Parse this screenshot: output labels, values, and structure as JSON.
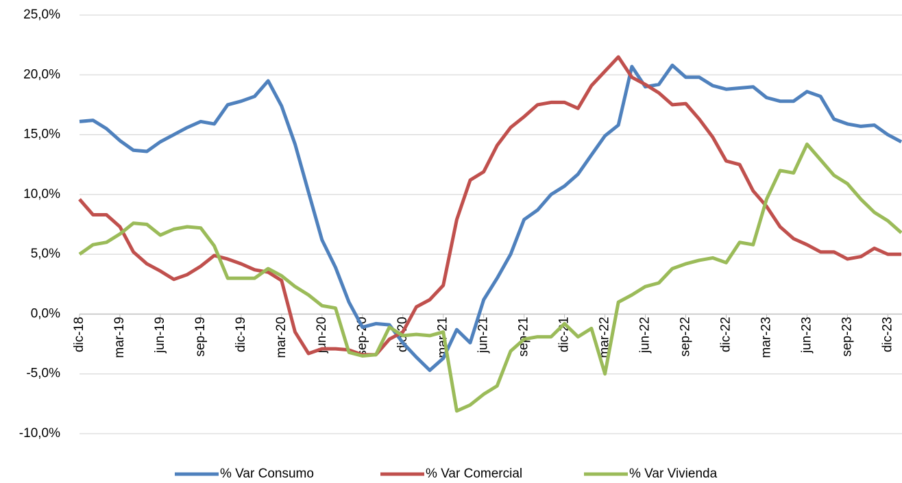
{
  "chart_data": {
    "type": "line",
    "categories": [
      "dic-18",
      null,
      null,
      "mar-19",
      null,
      null,
      "jun-19",
      null,
      null,
      "sep-19",
      null,
      null,
      "dic-19",
      null,
      null,
      "mar-20",
      null,
      null,
      "jun-20",
      null,
      null,
      "sep-20",
      null,
      null,
      "dic-20",
      null,
      null,
      "mar-21",
      null,
      null,
      "jun-21",
      null,
      null,
      "sep-21",
      null,
      null,
      "dic-21",
      null,
      null,
      "mar-22",
      null,
      null,
      "jun-22",
      null,
      null,
      "sep-22",
      null,
      null,
      "dic-22",
      null,
      null,
      "mar-23",
      null,
      null,
      "jun-23",
      null,
      null,
      "sep-23",
      null,
      null,
      "dic-23",
      null
    ],
    "series": [
      {
        "name": "% Var Consumo",
        "color": "#4f81bd",
        "values": [
          16.1,
          16.2,
          15.5,
          14.5,
          13.7,
          13.6,
          14.4,
          15.0,
          15.6,
          16.1,
          15.9,
          17.5,
          17.8,
          18.2,
          19.5,
          17.4,
          14.2,
          10.2,
          6.2,
          3.9,
          1.0,
          -1.1,
          -0.8,
          -0.9,
          -2.4,
          -3.6,
          -4.7,
          -3.7,
          -1.3,
          -2.4,
          1.2,
          3.0,
          5.0,
          7.9,
          8.7,
          10.0,
          10.7,
          11.7,
          13.3,
          14.9,
          15.8,
          20.7,
          19.0,
          19.2,
          20.8,
          19.8,
          19.8,
          19.1,
          18.8,
          18.9,
          19.0,
          18.1,
          17.8,
          17.8,
          18.6,
          18.2,
          16.3,
          15.9,
          15.7,
          15.8,
          15.0,
          14.4
        ]
      },
      {
        "name": "% Var Comercial",
        "color": "#c0504d",
        "values": [
          9.6,
          8.3,
          8.3,
          7.3,
          5.2,
          4.2,
          3.6,
          2.9,
          3.3,
          4.0,
          4.9,
          4.6,
          4.2,
          3.7,
          3.5,
          2.8,
          -1.5,
          -3.3,
          -2.9,
          -2.9,
          -3.0,
          -3.4,
          -3.4,
          -2.1,
          -1.5,
          0.6,
          1.2,
          2.4,
          7.9,
          11.2,
          11.9,
          14.1,
          15.6,
          16.5,
          17.5,
          17.7,
          17.7,
          17.2,
          19.1,
          20.3,
          21.5,
          19.8,
          19.2,
          18.5,
          17.5,
          17.6,
          16.3,
          14.8,
          12.8,
          12.5,
          10.3,
          9.0,
          7.3,
          6.3,
          5.8,
          5.2,
          5.2,
          4.6,
          4.8,
          5.5,
          5.0,
          5.0
        ]
      },
      {
        "name": "% Var Vivienda",
        "color": "#9bbb59",
        "values": [
          5.0,
          5.8,
          6.0,
          6.7,
          7.6,
          7.5,
          6.6,
          7.1,
          7.3,
          7.2,
          5.7,
          3.0,
          3.0,
          3.0,
          3.8,
          3.2,
          2.3,
          1.6,
          0.7,
          0.5,
          -3.2,
          -3.5,
          -3.4,
          -1.1,
          -1.8,
          -1.7,
          -1.8,
          -1.5,
          -8.1,
          -7.6,
          -6.7,
          -6.0,
          -3.1,
          -2.1,
          -1.9,
          -1.9,
          -0.8,
          -1.9,
          -1.2,
          -5.0,
          1.0,
          1.6,
          2.3,
          2.6,
          3.8,
          4.2,
          4.5,
          4.7,
          4.3,
          6.0,
          5.8,
          9.6,
          12.0,
          11.8,
          14.2,
          12.9,
          11.6,
          10.9,
          9.6,
          8.5,
          7.8,
          6.8
        ]
      }
    ],
    "ylim": [
      -10,
      25
    ],
    "yticks": [
      {
        "value": -10,
        "label": "-10,0%"
      },
      {
        "value": -5,
        "label": "-5,0%"
      },
      {
        "value": 0,
        "label": "0,0%"
      },
      {
        "value": 5,
        "label": "5,0%"
      },
      {
        "value": 10,
        "label": "10,0%"
      },
      {
        "value": 15,
        "label": "15,0%"
      },
      {
        "value": 20,
        "label": "20,0%"
      },
      {
        "value": 25,
        "label": "25,0%"
      }
    ],
    "grid": true,
    "legend": "bottom"
  }
}
